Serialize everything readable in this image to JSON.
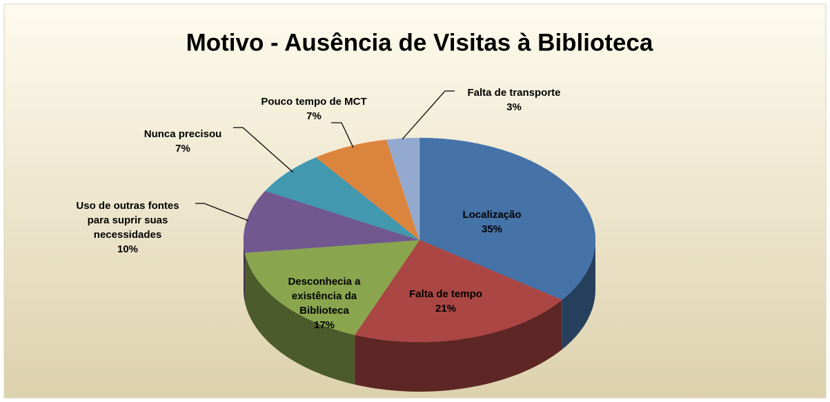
{
  "chart_data": {
    "type": "pie",
    "title": "Motivo - Ausência de Visitas à Biblioteca",
    "categories": [
      "Localização",
      "Falta de tempo",
      "Desconhecia a\nexistência da\nBiblioteca",
      "Uso de outras fontes\npara suprir suas\nnecessidades",
      "Nunca precisou",
      "Pouco tempo de MCT",
      "Falta de transporte"
    ],
    "values": [
      35,
      21,
      17,
      10,
      7,
      7,
      3
    ],
    "value_labels": [
      "35%",
      "21%",
      "17%",
      "10%",
      "7%",
      "7%",
      "3%"
    ],
    "colors": [
      "#4572a7",
      "#aa4643",
      "#89a54e",
      "#71588f",
      "#4198af",
      "#db843d",
      "#93a9cf"
    ]
  }
}
